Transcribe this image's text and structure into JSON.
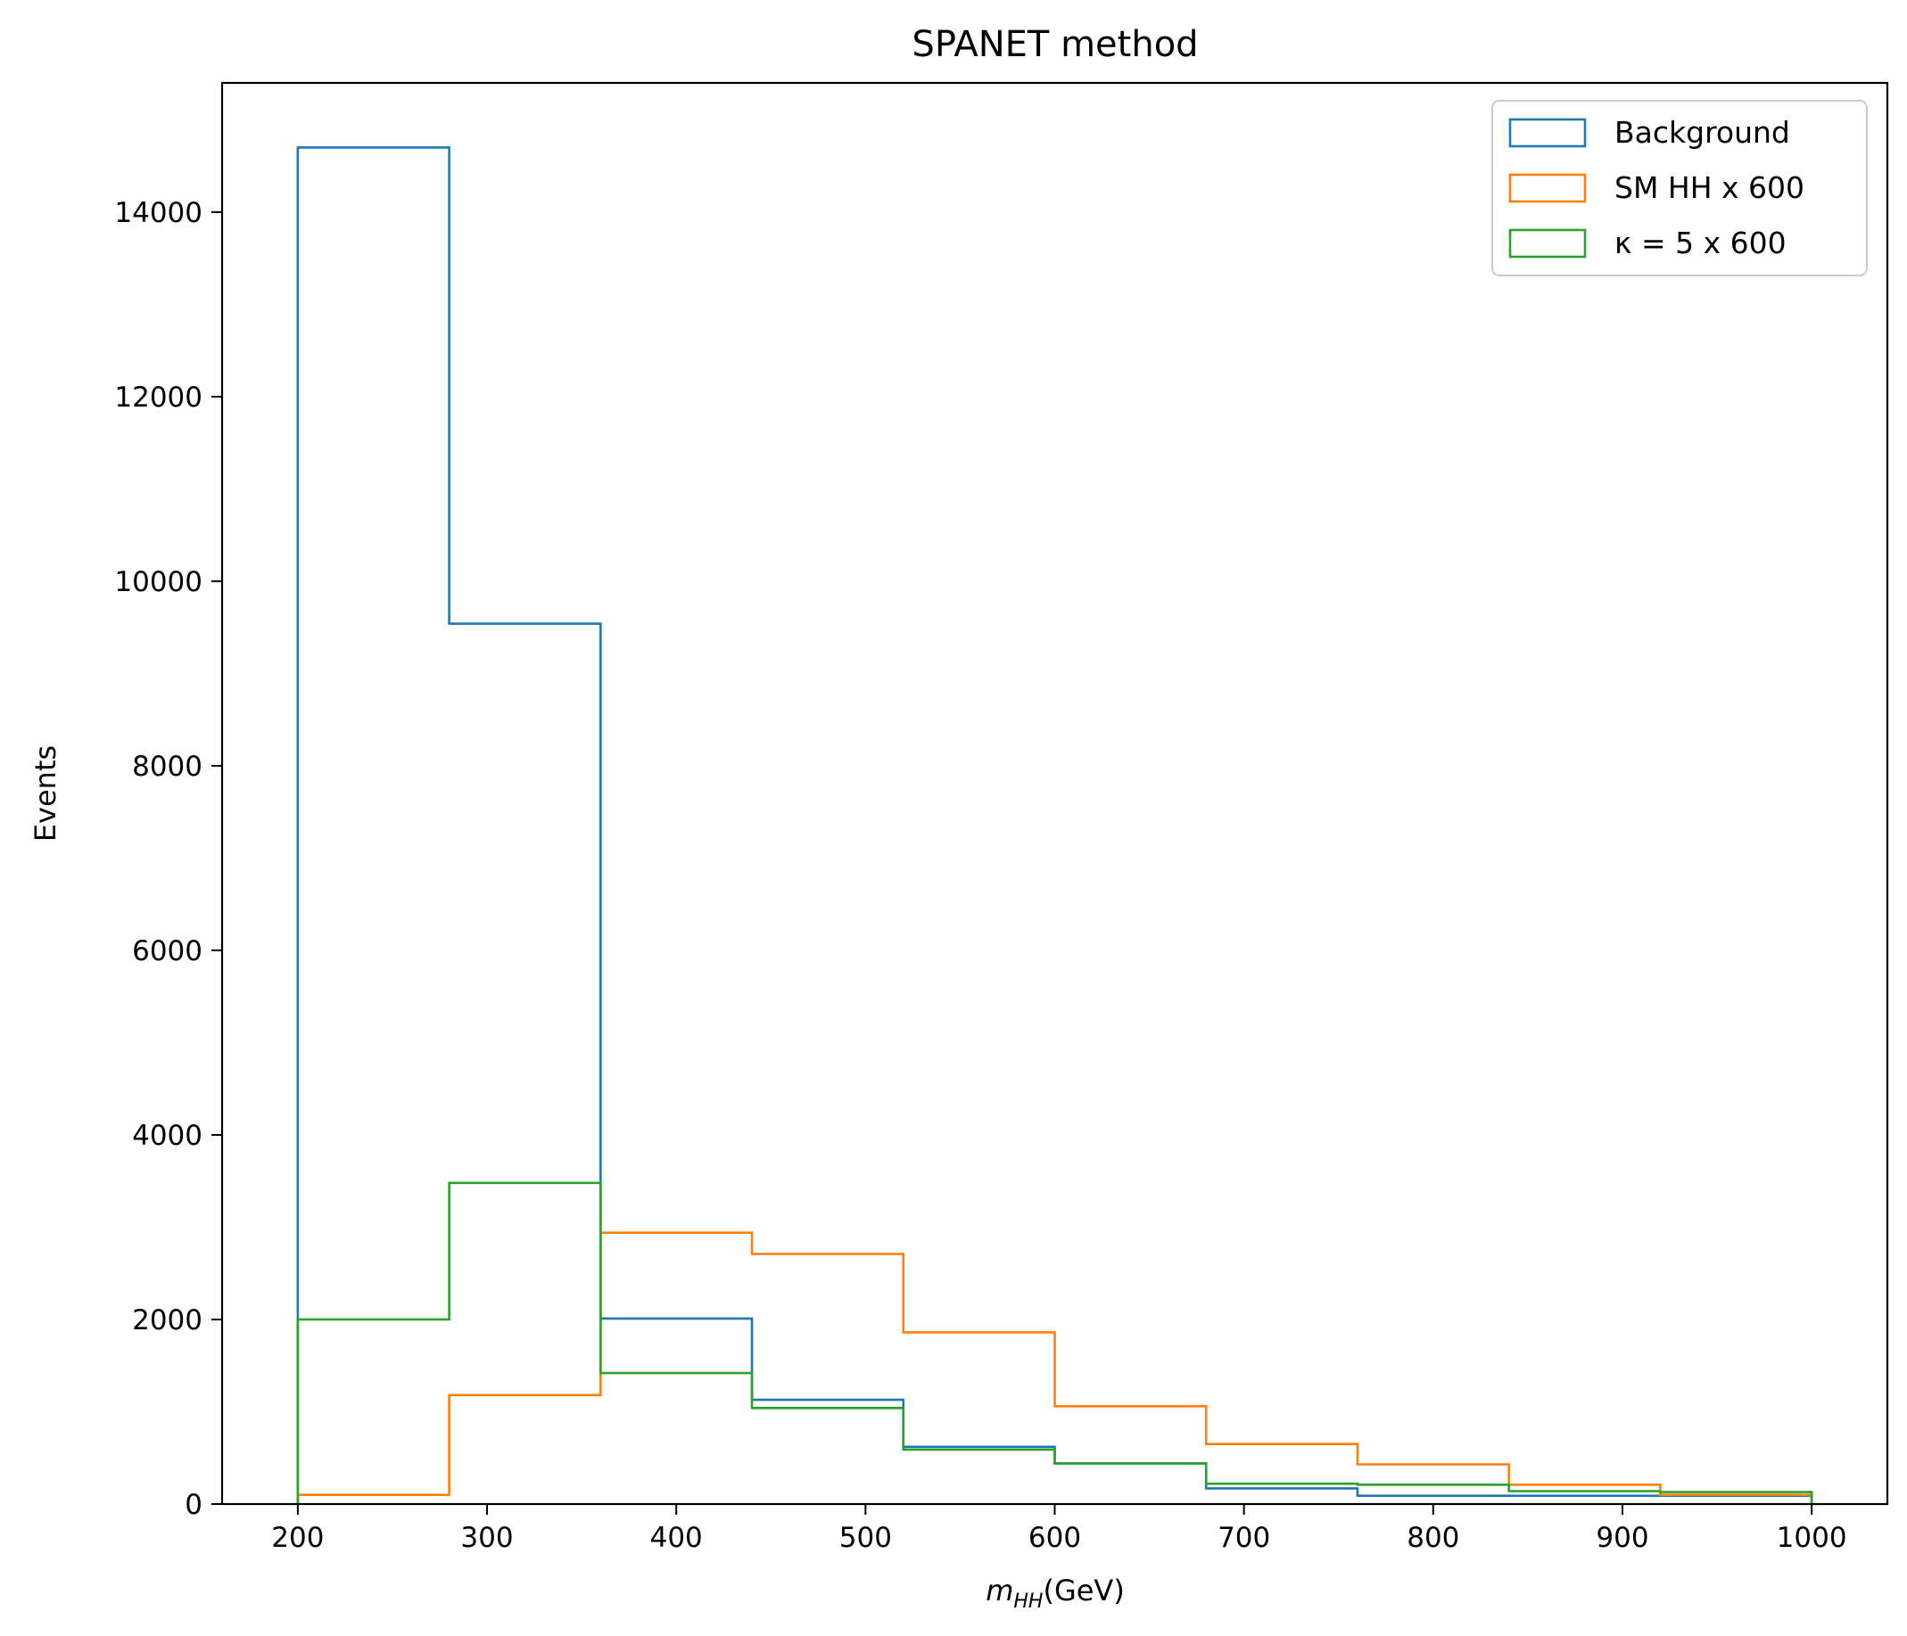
{
  "chart_data": {
    "type": "histogram-step",
    "title": "SPANET method",
    "xlabel": "m_HH(GeV)",
    "xlabel_parts": {
      "m": "m",
      "sub": "HH",
      "rest": "(GeV)"
    },
    "ylabel": "Events",
    "xlim": [
      160,
      1040
    ],
    "ylim": [
      0,
      15400
    ],
    "xticks": [
      200,
      300,
      400,
      500,
      600,
      700,
      800,
      900,
      1000
    ],
    "yticks": [
      0,
      2000,
      4000,
      6000,
      8000,
      10000,
      12000,
      14000
    ],
    "bin_edges": [
      200,
      280,
      360,
      440,
      520,
      600,
      680,
      760,
      840,
      920,
      1000
    ],
    "grid": false,
    "legend_position": "top-right",
    "series": [
      {
        "name": "Background",
        "color": "#1f77b4",
        "values": [
          14700,
          9540,
          2010,
          1130,
          620,
          440,
          170,
          90,
          90,
          90
        ]
      },
      {
        "name": "SM HH x 600",
        "color": "#ff7f0e",
        "values": [
          100,
          1180,
          2940,
          2710,
          1860,
          1060,
          650,
          430,
          210,
          100
        ]
      },
      {
        "name": "κ = 5 x 600",
        "color": "#2ca02c",
        "values": [
          2000,
          3480,
          1420,
          1040,
          590,
          440,
          220,
          210,
          140,
          130
        ]
      }
    ]
  }
}
